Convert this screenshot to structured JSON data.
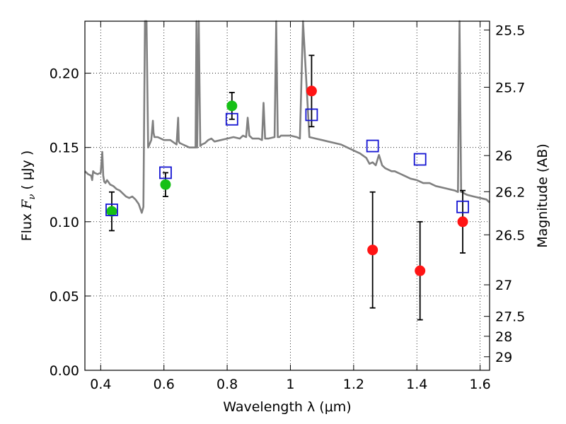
{
  "chart_data": {
    "type": "scatter",
    "xlabel": "Wavelength  λ (μm)",
    "ylabel_left": {
      "prefix": "Flux  ",
      "symbol": "F",
      "subscript": "ν",
      "suffix": "  ( μJy )"
    },
    "ylabel_right": "Magnitude (AB)",
    "xlim": [
      0.35,
      1.63
    ],
    "ylim": [
      0.0,
      0.235
    ],
    "grid": true,
    "x_ticks": [
      0.4,
      0.6,
      0.8,
      1.0,
      1.2,
      1.4,
      1.6
    ],
    "x_tick_labels": [
      "0.4",
      "0.6",
      "0.8",
      "1",
      "1.2",
      "1.4",
      "1.6"
    ],
    "y_ticks": [
      0.0,
      0.05,
      0.1,
      0.15,
      0.2
    ],
    "y_tick_labels": [
      "0.00",
      "0.05",
      "0.10",
      "0.15",
      "0.20"
    ],
    "right_ticks": [
      {
        "label": "25.5",
        "mag": 25.5
      },
      {
        "label": "25.7",
        "mag": 25.7
      },
      {
        "label": "26",
        "mag": 26.0
      },
      {
        "label": "26.2",
        "mag": 26.2
      },
      {
        "label": "26.5",
        "mag": 26.5
      },
      {
        "label": "27",
        "mag": 27.0
      },
      {
        "label": "27.5",
        "mag": 27.5
      },
      {
        "label": "28",
        "mag": 28.0
      },
      {
        "label": "29",
        "mag": 29.0
      }
    ],
    "series": [
      {
        "kind": "line",
        "color": "#808080",
        "x": [
          0.35,
          0.36,
          0.37,
          0.373,
          0.376,
          0.38,
          0.39,
          0.4,
          0.405,
          0.408,
          0.411,
          0.415,
          0.42,
          0.43,
          0.44,
          0.45,
          0.46,
          0.47,
          0.48,
          0.49,
          0.5,
          0.51,
          0.52,
          0.53,
          0.535,
          0.54,
          0.545,
          0.55,
          0.56,
          0.565,
          0.567,
          0.57,
          0.58,
          0.59,
          0.6,
          0.62,
          0.64,
          0.645,
          0.647,
          0.65,
          0.66,
          0.67,
          0.68,
          0.7,
          0.703,
          0.705,
          0.71,
          0.715,
          0.72,
          0.73,
          0.74,
          0.75,
          0.76,
          0.78,
          0.8,
          0.82,
          0.84,
          0.85,
          0.86,
          0.865,
          0.87,
          0.875,
          0.88,
          0.9,
          0.91,
          0.915,
          0.92,
          0.93,
          0.95,
          0.955,
          0.96,
          0.965,
          0.97,
          1.0,
          1.02,
          1.03,
          1.04,
          1.06,
          1.08,
          1.1,
          1.12,
          1.14,
          1.16,
          1.18,
          1.2,
          1.22,
          1.24,
          1.25,
          1.26,
          1.27,
          1.28,
          1.29,
          1.3,
          1.32,
          1.33,
          1.34,
          1.35,
          1.36,
          1.38,
          1.4,
          1.42,
          1.44,
          1.46,
          1.48,
          1.5,
          1.52,
          1.53,
          1.535,
          1.54,
          1.545,
          1.55,
          1.56,
          1.58,
          1.6,
          1.62,
          1.63
        ],
        "y": [
          0.134,
          0.132,
          0.131,
          0.128,
          0.134,
          0.133,
          0.132,
          0.133,
          0.147,
          0.131,
          0.127,
          0.126,
          0.128,
          0.125,
          0.124,
          0.122,
          0.121,
          0.119,
          0.117,
          0.116,
          0.117,
          0.115,
          0.112,
          0.106,
          0.11,
          0.235,
          0.235,
          0.15,
          0.155,
          0.168,
          0.16,
          0.157,
          0.157,
          0.156,
          0.155,
          0.155,
          0.152,
          0.17,
          0.154,
          0.153,
          0.152,
          0.151,
          0.15,
          0.15,
          0.235,
          0.15,
          0.235,
          0.151,
          0.152,
          0.153,
          0.155,
          0.156,
          0.154,
          0.155,
          0.156,
          0.157,
          0.156,
          0.158,
          0.157,
          0.17,
          0.158,
          0.157,
          0.156,
          0.156,
          0.155,
          0.18,
          0.156,
          0.156,
          0.157,
          0.235,
          0.157,
          0.157,
          0.158,
          0.158,
          0.157,
          0.156,
          0.235,
          0.157,
          0.156,
          0.155,
          0.154,
          0.153,
          0.152,
          0.15,
          0.148,
          0.146,
          0.143,
          0.139,
          0.14,
          0.138,
          0.145,
          0.138,
          0.136,
          0.134,
          0.134,
          0.133,
          0.132,
          0.131,
          0.129,
          0.128,
          0.126,
          0.126,
          0.124,
          0.123,
          0.122,
          0.121,
          0.12,
          0.235,
          0.12,
          0.12,
          0.119,
          0.118,
          0.117,
          0.116,
          0.115,
          0.113
        ]
      },
      {
        "kind": "points",
        "marker": "circle",
        "color": "#16c016",
        "x": [
          0.435,
          0.605,
          0.815
        ],
        "y": [
          0.107,
          0.125,
          0.178
        ],
        "yerr": [
          0.013,
          0.008,
          0.009
        ]
      },
      {
        "kind": "points",
        "marker": "circle",
        "color": "#ff1414",
        "x": [
          1.067,
          1.26,
          1.41,
          1.545
        ],
        "y": [
          0.188,
          0.081,
          0.067,
          0.1
        ],
        "yerr": [
          0.024,
          0.039,
          0.033,
          0.021
        ]
      },
      {
        "kind": "points",
        "marker": "square-open",
        "color": "#1414d2",
        "x": [
          0.435,
          0.605,
          0.815,
          1.067,
          1.26,
          1.41,
          1.545
        ],
        "y": [
          0.108,
          0.133,
          0.169,
          0.172,
          0.151,
          0.142,
          0.11
        ]
      }
    ]
  }
}
